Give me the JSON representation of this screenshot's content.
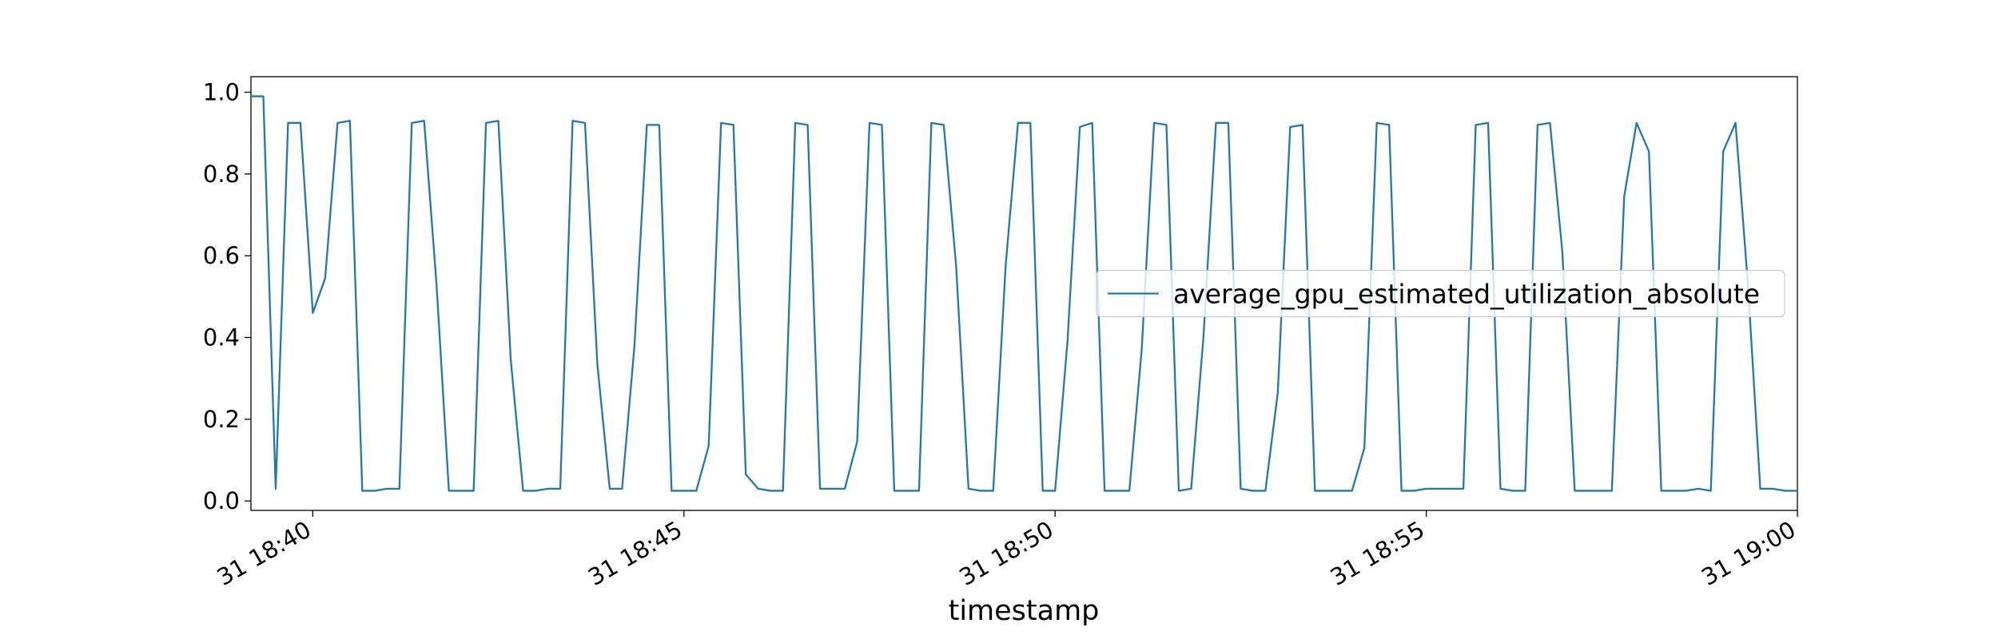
{
  "chart_data": {
    "type": "line",
    "xlabel": "timestamp",
    "legend": "center right",
    "x": [
      "31 18:39:10",
      "31 18:39:20",
      "31 18:39:30",
      "31 18:39:40",
      "31 18:39:50",
      "31 18:40:00",
      "31 18:40:10",
      "31 18:40:20",
      "31 18:40:30",
      "31 18:40:40",
      "31 18:40:50",
      "31 18:41:00",
      "31 18:41:10",
      "31 18:41:20",
      "31 18:41:30",
      "31 18:41:40",
      "31 18:41:50",
      "31 18:42:00",
      "31 18:42:10",
      "31 18:42:20",
      "31 18:42:30",
      "31 18:42:40",
      "31 18:42:50",
      "31 18:43:00",
      "31 18:43:10",
      "31 18:43:20",
      "31 18:43:30",
      "31 18:43:40",
      "31 18:43:50",
      "31 18:44:00",
      "31 18:44:10",
      "31 18:44:20",
      "31 18:44:30",
      "31 18:44:40",
      "31 18:44:50",
      "31 18:45:00",
      "31 18:45:10",
      "31 18:45:20",
      "31 18:45:30",
      "31 18:45:40",
      "31 18:45:50",
      "31 18:46:00",
      "31 18:46:10",
      "31 18:46:20",
      "31 18:46:30",
      "31 18:46:40",
      "31 18:46:50",
      "31 18:47:00",
      "31 18:47:10",
      "31 18:47:20",
      "31 18:47:30",
      "31 18:47:40",
      "31 18:47:50",
      "31 18:48:00",
      "31 18:48:10",
      "31 18:48:20",
      "31 18:48:30",
      "31 18:48:40",
      "31 18:48:50",
      "31 18:49:00",
      "31 18:49:10",
      "31 18:49:20",
      "31 18:49:30",
      "31 18:49:40",
      "31 18:49:50",
      "31 18:50:00",
      "31 18:50:10",
      "31 18:50:20",
      "31 18:50:30",
      "31 18:50:40",
      "31 18:50:50",
      "31 18:51:00",
      "31 18:51:10",
      "31 18:51:20",
      "31 18:51:30",
      "31 18:51:40",
      "31 18:51:50",
      "31 18:52:00",
      "31 18:52:10",
      "31 18:52:20",
      "31 18:52:30",
      "31 18:52:40",
      "31 18:52:50",
      "31 18:53:00",
      "31 18:53:10",
      "31 18:53:20",
      "31 18:53:30",
      "31 18:53:40",
      "31 18:53:50",
      "31 18:54:00",
      "31 18:54:10",
      "31 18:54:20",
      "31 18:54:30",
      "31 18:54:40",
      "31 18:54:50",
      "31 18:55:00",
      "31 18:55:10",
      "31 18:55:20",
      "31 18:55:30",
      "31 18:55:40",
      "31 18:55:50",
      "31 18:56:00",
      "31 18:56:10",
      "31 18:56:20",
      "31 18:56:30",
      "31 18:56:40",
      "31 18:56:50",
      "31 18:57:00",
      "31 18:57:10",
      "31 18:57:20",
      "31 18:57:30",
      "31 18:57:40",
      "31 18:57:50",
      "31 18:58:00",
      "31 18:58:10",
      "31 18:58:20",
      "31 18:58:30",
      "31 18:58:40",
      "31 18:58:50",
      "31 18:59:00",
      "31 18:59:10",
      "31 18:59:20",
      "31 18:59:30",
      "31 18:59:40",
      "31 18:59:50",
      "31 19:00:00"
    ],
    "series": [
      {
        "name": "average_gpu_estimated_utilization_absolute",
        "color": "#1f77b4",
        "values": [
          0.99,
          0.99,
          0.03,
          0.925,
          0.925,
          0.46,
          0.545,
          0.925,
          0.93,
          0.025,
          0.025,
          0.03,
          0.03,
          0.925,
          0.93,
          0.53,
          0.025,
          0.025,
          0.025,
          0.925,
          0.93,
          0.345,
          0.025,
          0.025,
          0.03,
          0.03,
          0.93,
          0.925,
          0.335,
          0.03,
          0.03,
          0.38,
          0.92,
          0.92,
          0.025,
          0.025,
          0.025,
          0.135,
          0.925,
          0.92,
          0.065,
          0.03,
          0.025,
          0.025,
          0.925,
          0.92,
          0.03,
          0.03,
          0.03,
          0.145,
          0.925,
          0.92,
          0.025,
          0.025,
          0.025,
          0.925,
          0.92,
          0.575,
          0.03,
          0.025,
          0.025,
          0.575,
          0.925,
          0.925,
          0.025,
          0.025,
          0.39,
          0.915,
          0.925,
          0.025,
          0.025,
          0.025,
          0.37,
          0.925,
          0.92,
          0.025,
          0.03,
          0.405,
          0.925,
          0.925,
          0.03,
          0.025,
          0.025,
          0.265,
          0.915,
          0.92,
          0.025,
          0.025,
          0.025,
          0.025,
          0.13,
          0.925,
          0.92,
          0.025,
          0.025,
          0.03,
          0.03,
          0.03,
          0.03,
          0.92,
          0.925,
          0.03,
          0.025,
          0.025,
          0.92,
          0.925,
          0.61,
          0.025,
          0.025,
          0.025,
          0.025,
          0.745,
          0.925,
          0.855,
          0.025,
          0.025,
          0.025,
          0.03,
          0.025,
          0.855,
          0.925,
          0.53,
          0.03,
          0.03,
          0.025,
          0.025
        ]
      }
    ],
    "xlim": [
      "31 18:39:10",
      "31 19:00:00"
    ],
    "xticks": [
      "31 18:40",
      "31 18:45",
      "31 18:50",
      "31 18:55",
      "31 19:00"
    ],
    "ylim": [
      -0.023,
      1.038
    ],
    "yticks": [
      {
        "value": 0,
        "label": "0.0"
      },
      0.2,
      0.4,
      0.6,
      0.8,
      {
        "value": 1,
        "label": "1.0"
      }
    ]
  }
}
